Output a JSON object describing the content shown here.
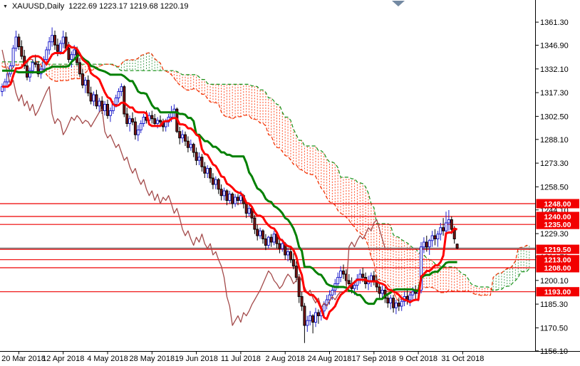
{
  "title": {
    "collapse_icon": "▼",
    "symbol_period": "XAUUSD,Daily",
    "ohlc": "1222.69 1223.17 1219.68 1220.19"
  },
  "chart_data": {
    "type": "candlestick",
    "instrument": "XAUUSD",
    "timeframe": "Daily",
    "title": "XAUUSD,Daily  1222.69 1223.17 1219.68 1220.19",
    "x_axis_labels": [
      "20 Mar 2018",
      "12 Apr 2018",
      "4 May 2018",
      "28 May 2018",
      "19 Jun 2018",
      "11 Jul 2018",
      "2 Aug 2018",
      "24 Aug 2018",
      "17 Sep 2018",
      "9 Oct 2018",
      "31 Oct 2018"
    ],
    "first_label_bar_index": 6,
    "bars_per_label": 16,
    "y_axis_ticks": [
      1361.3,
      1346.9,
      1332.1,
      1317.3,
      1302.5,
      1288.1,
      1273.3,
      1258.5,
      1244.1,
      1229.3,
      1214.7,
      1200.1,
      1185.3,
      1170.5,
      1156.1
    ],
    "y_range": {
      "min": 1156.0,
      "max": 1375.1
    },
    "grid": false,
    "legend": false,
    "horizontal_levels": [
      {
        "price": 1248.0,
        "label": "1248.00"
      },
      {
        "price": 1240.0,
        "label": "1240.00"
      },
      {
        "price": 1235.0,
        "label": "1235.00"
      },
      {
        "price": 1219.5,
        "label": "1219.50"
      },
      {
        "price": 1213.0,
        "label": "1213.00"
      },
      {
        "price": 1208.0,
        "label": "1208.00"
      },
      {
        "price": 1193.0,
        "label": "1193.00"
      }
    ],
    "bid_price": 1220.19,
    "last_candle_ohlc": [
      1222.69,
      1223.17,
      1219.68,
      1220.19
    ],
    "shift_marker_x": 559,
    "ichimoku": {
      "tenkan_period": 9,
      "kijun_period": 26,
      "senkou_b_period": 52,
      "displacement": 26
    },
    "colors": {
      "background": "#FFFFFF",
      "axis_text": "#000000",
      "axis_line": "#000000",
      "bull_body": "#FFFFFF",
      "bull_border": "#2020CC",
      "bear_body": "#7E1515",
      "bear_border": "#000000",
      "tenkan": "#FF0000",
      "kijun": "#008000",
      "chikou": "#A34A4A",
      "senkou_a": "#F03000",
      "senkou_b": "#159015",
      "cloud_bear_fill": "#FF4D26",
      "cloud_bull_fill": "#4CA45C",
      "level_line": "#EE0000",
      "badge_bg": "#F20000",
      "badge_text": "#FFFFFF",
      "bid_line": "#808080",
      "shift_marker": "#7389A2"
    },
    "prehistory_ohlc": [
      [
        1340,
        1345,
        1335,
        1342
      ],
      [
        1342,
        1352,
        1340,
        1350
      ],
      [
        1350,
        1358,
        1347,
        1355
      ],
      [
        1355,
        1366,
        1352,
        1362
      ],
      [
        1362,
        1364,
        1353,
        1356
      ],
      [
        1356,
        1360,
        1348,
        1351
      ],
      [
        1351,
        1354,
        1342,
        1345
      ],
      [
        1345,
        1350,
        1340,
        1348
      ],
      [
        1348,
        1352,
        1338,
        1341
      ],
      [
        1341,
        1344,
        1330,
        1333
      ],
      [
        1333,
        1338,
        1325,
        1328
      ],
      [
        1328,
        1332,
        1318,
        1321
      ],
      [
        1321,
        1325,
        1312,
        1315
      ],
      [
        1315,
        1318,
        1307,
        1310
      ],
      [
        1310,
        1319,
        1308,
        1317
      ],
      [
        1317,
        1326,
        1315,
        1324
      ],
      [
        1324,
        1335,
        1322,
        1332
      ],
      [
        1332,
        1343,
        1330,
        1341
      ],
      [
        1341,
        1352,
        1339,
        1349
      ],
      [
        1349,
        1358,
        1347,
        1355
      ],
      [
        1355,
        1357,
        1345,
        1348
      ],
      [
        1348,
        1351,
        1339,
        1342
      ],
      [
        1342,
        1346,
        1333,
        1336
      ],
      [
        1336,
        1340,
        1328,
        1331
      ],
      [
        1331,
        1335,
        1324,
        1328
      ],
      [
        1328,
        1332,
        1320,
        1324
      ],
      [
        1324,
        1329,
        1317,
        1321
      ],
      [
        1321,
        1326,
        1314,
        1318
      ],
      [
        1318,
        1322,
        1309,
        1312
      ],
      [
        1312,
        1316,
        1304,
        1307
      ],
      [
        1307,
        1313,
        1305,
        1311
      ],
      [
        1311,
        1318,
        1308,
        1316
      ],
      [
        1316,
        1323,
        1313,
        1320
      ],
      [
        1320,
        1328,
        1317,
        1325
      ],
      [
        1325,
        1331,
        1322,
        1329
      ],
      [
        1329,
        1333,
        1320,
        1323
      ],
      [
        1323,
        1327,
        1315,
        1318
      ],
      [
        1318,
        1322,
        1311,
        1314
      ],
      [
        1314,
        1319,
        1309,
        1312
      ],
      [
        1312,
        1318,
        1310,
        1316
      ]
    ],
    "candles_ohlc": [
      [
        1318,
        1323,
        1315,
        1321
      ],
      [
        1321,
        1326,
        1318,
        1324
      ],
      [
        1324,
        1330,
        1322,
        1329
      ],
      [
        1329,
        1336,
        1327,
        1334
      ],
      [
        1334,
        1347,
        1333,
        1345
      ],
      [
        1345,
        1356,
        1343,
        1352
      ],
      [
        1352,
        1354,
        1344,
        1346
      ],
      [
        1346,
        1350,
        1338,
        1340
      ],
      [
        1340,
        1344,
        1332,
        1334
      ],
      [
        1334,
        1337,
        1325,
        1327
      ],
      [
        1327,
        1333,
        1324,
        1331
      ],
      [
        1331,
        1338,
        1329,
        1336
      ],
      [
        1336,
        1341,
        1333,
        1335
      ],
      [
        1335,
        1337,
        1327,
        1329
      ],
      [
        1329,
        1334,
        1326,
        1332
      ],
      [
        1332,
        1340,
        1330,
        1338
      ],
      [
        1338,
        1346,
        1336,
        1344
      ],
      [
        1344,
        1352,
        1341,
        1349
      ],
      [
        1349,
        1358,
        1346,
        1353
      ],
      [
        1353,
        1356,
        1344,
        1347
      ],
      [
        1347,
        1351,
        1340,
        1343
      ],
      [
        1343,
        1350,
        1341,
        1348
      ],
      [
        1348,
        1356,
        1345,
        1352
      ],
      [
        1352,
        1355,
        1343,
        1345
      ],
      [
        1345,
        1349,
        1336,
        1338
      ],
      [
        1338,
        1343,
        1333,
        1341
      ],
      [
        1341,
        1347,
        1338,
        1344
      ],
      [
        1344,
        1346,
        1334,
        1336
      ],
      [
        1336,
        1339,
        1327,
        1329
      ],
      [
        1329,
        1332,
        1320,
        1322
      ],
      [
        1322,
        1327,
        1317,
        1325
      ],
      [
        1325,
        1328,
        1315,
        1317
      ],
      [
        1317,
        1321,
        1310,
        1312
      ],
      [
        1312,
        1318,
        1309,
        1316
      ],
      [
        1316,
        1319,
        1307,
        1309
      ],
      [
        1309,
        1314,
        1305,
        1312
      ],
      [
        1312,
        1315,
        1304,
        1306
      ],
      [
        1306,
        1312,
        1303,
        1310
      ],
      [
        1310,
        1313,
        1301,
        1303
      ],
      [
        1303,
        1308,
        1299,
        1306
      ],
      [
        1306,
        1312,
        1304,
        1310
      ],
      [
        1310,
        1316,
        1308,
        1314
      ],
      [
        1314,
        1320,
        1311,
        1318
      ],
      [
        1318,
        1323,
        1315,
        1321
      ],
      [
        1321,
        1322,
        1302,
        1304
      ],
      [
        1304,
        1308,
        1296,
        1298
      ],
      [
        1298,
        1303,
        1293,
        1301
      ],
      [
        1301,
        1305,
        1297,
        1299
      ],
      [
        1299,
        1302,
        1288,
        1291
      ],
      [
        1291,
        1297,
        1287,
        1294
      ],
      [
        1294,
        1300,
        1292,
        1298
      ],
      [
        1298,
        1304,
        1296,
        1302
      ],
      [
        1302,
        1306,
        1298,
        1300
      ],
      [
        1300,
        1305,
        1297,
        1303
      ],
      [
        1303,
        1306,
        1298,
        1301
      ],
      [
        1301,
        1304,
        1296,
        1298
      ],
      [
        1298,
        1302,
        1295,
        1300
      ],
      [
        1300,
        1303,
        1296,
        1299
      ],
      [
        1299,
        1301,
        1293,
        1296
      ],
      [
        1296,
        1301,
        1293,
        1299
      ],
      [
        1299,
        1304,
        1296,
        1302
      ],
      [
        1302,
        1309,
        1299,
        1305
      ],
      [
        1305,
        1310,
        1302,
        1307
      ],
      [
        1307,
        1308,
        1292,
        1293
      ],
      [
        1293,
        1296,
        1285,
        1289
      ],
      [
        1289,
        1294,
        1286,
        1291
      ],
      [
        1291,
        1293,
        1284,
        1287
      ],
      [
        1287,
        1290,
        1280,
        1283
      ],
      [
        1283,
        1288,
        1281,
        1285
      ],
      [
        1285,
        1286,
        1277,
        1280
      ],
      [
        1280,
        1283,
        1272,
        1275
      ],
      [
        1275,
        1280,
        1272,
        1277
      ],
      [
        1277,
        1279,
        1268,
        1271
      ],
      [
        1271,
        1274,
        1264,
        1267
      ],
      [
        1267,
        1272,
        1264,
        1270
      ],
      [
        1270,
        1271,
        1261,
        1264
      ],
      [
        1264,
        1267,
        1257,
        1260
      ],
      [
        1260,
        1265,
        1257,
        1263
      ],
      [
        1263,
        1264,
        1254,
        1257
      ],
      [
        1257,
        1260,
        1250,
        1253
      ],
      [
        1253,
        1258,
        1250,
        1256
      ],
      [
        1256,
        1257,
        1247,
        1250
      ],
      [
        1250,
        1256,
        1248,
        1254
      ],
      [
        1254,
        1255,
        1245,
        1248
      ],
      [
        1248,
        1254,
        1246,
        1252
      ],
      [
        1252,
        1254,
        1247,
        1250
      ],
      [
        1250,
        1256,
        1248,
        1253
      ],
      [
        1253,
        1254,
        1245,
        1248
      ],
      [
        1248,
        1250,
        1239,
        1242
      ],
      [
        1242,
        1247,
        1240,
        1245
      ],
      [
        1245,
        1246,
        1236,
        1239
      ],
      [
        1239,
        1241,
        1229,
        1232
      ],
      [
        1232,
        1235,
        1225,
        1228
      ],
      [
        1228,
        1233,
        1226,
        1231
      ],
      [
        1231,
        1232,
        1223,
        1226
      ],
      [
        1226,
        1229,
        1219,
        1222
      ],
      [
        1222,
        1228,
        1220,
        1227
      ],
      [
        1227,
        1229,
        1221,
        1224
      ],
      [
        1224,
        1231,
        1222,
        1229
      ],
      [
        1229,
        1230,
        1220,
        1223
      ],
      [
        1223,
        1226,
        1217,
        1220
      ],
      [
        1220,
        1226,
        1218,
        1223
      ],
      [
        1223,
        1224,
        1213,
        1216
      ],
      [
        1216,
        1220,
        1212,
        1218
      ],
      [
        1218,
        1221,
        1211,
        1213
      ],
      [
        1213,
        1217,
        1207,
        1209
      ],
      [
        1209,
        1212,
        1199,
        1202
      ],
      [
        1202,
        1204,
        1186,
        1190
      ],
      [
        1190,
        1193,
        1181,
        1184
      ],
      [
        1184,
        1186,
        1161,
        1172
      ],
      [
        1172,
        1178,
        1168,
        1175
      ],
      [
        1175,
        1181,
        1172,
        1178
      ],
      [
        1178,
        1179,
        1167,
        1174
      ],
      [
        1174,
        1183,
        1171,
        1180
      ],
      [
        1180,
        1182,
        1173,
        1178
      ],
      [
        1178,
        1184,
        1175,
        1181
      ],
      [
        1181,
        1187,
        1178,
        1185
      ],
      [
        1185,
        1191,
        1182,
        1188
      ],
      [
        1188,
        1194,
        1185,
        1191
      ],
      [
        1191,
        1197,
        1188,
        1194
      ],
      [
        1194,
        1201,
        1191,
        1198
      ],
      [
        1198,
        1205,
        1195,
        1202
      ],
      [
        1202,
        1209,
        1199,
        1206
      ],
      [
        1206,
        1210,
        1201,
        1204
      ],
      [
        1204,
        1207,
        1197,
        1200
      ],
      [
        1200,
        1204,
        1195,
        1198
      ],
      [
        1198,
        1202,
        1192,
        1195
      ],
      [
        1195,
        1200,
        1191,
        1197
      ],
      [
        1197,
        1204,
        1194,
        1201
      ],
      [
        1201,
        1207,
        1198,
        1204
      ],
      [
        1204,
        1208,
        1199,
        1202
      ],
      [
        1202,
        1205,
        1195,
        1198
      ],
      [
        1198,
        1203,
        1194,
        1200
      ],
      [
        1200,
        1205,
        1196,
        1203
      ],
      [
        1203,
        1206,
        1197,
        1200
      ],
      [
        1200,
        1203,
        1193,
        1196
      ],
      [
        1196,
        1199,
        1189,
        1192
      ],
      [
        1192,
        1197,
        1188,
        1194
      ],
      [
        1194,
        1196,
        1186,
        1189
      ],
      [
        1189,
        1192,
        1183,
        1186
      ],
      [
        1186,
        1191,
        1182,
        1189
      ],
      [
        1189,
        1191,
        1180,
        1183
      ],
      [
        1183,
        1188,
        1179,
        1186
      ],
      [
        1186,
        1189,
        1181,
        1184
      ],
      [
        1184,
        1190,
        1181,
        1187
      ],
      [
        1187,
        1193,
        1184,
        1190
      ],
      [
        1190,
        1194,
        1185,
        1188
      ],
      [
        1188,
        1193,
        1184,
        1191
      ],
      [
        1191,
        1196,
        1187,
        1193
      ],
      [
        1193,
        1197,
        1188,
        1192
      ],
      [
        1192,
        1196,
        1187,
        1194
      ],
      [
        1194,
        1224,
        1192,
        1221
      ],
      [
        1221,
        1227,
        1217,
        1224
      ],
      [
        1224,
        1228,
        1218,
        1221
      ],
      [
        1221,
        1226,
        1216,
        1225
      ],
      [
        1225,
        1231,
        1221,
        1228
      ],
      [
        1228,
        1232,
        1222,
        1226
      ],
      [
        1226,
        1231,
        1221,
        1229
      ],
      [
        1229,
        1236,
        1225,
        1233
      ],
      [
        1233,
        1239,
        1228,
        1231
      ],
      [
        1231,
        1243,
        1228,
        1236
      ],
      [
        1236,
        1244,
        1231,
        1238
      ],
      [
        1238,
        1240,
        1229,
        1232
      ],
      [
        1232,
        1234,
        1223,
        1226
      ],
      [
        1222.69,
        1223.17,
        1219.68,
        1220.19
      ]
    ]
  }
}
